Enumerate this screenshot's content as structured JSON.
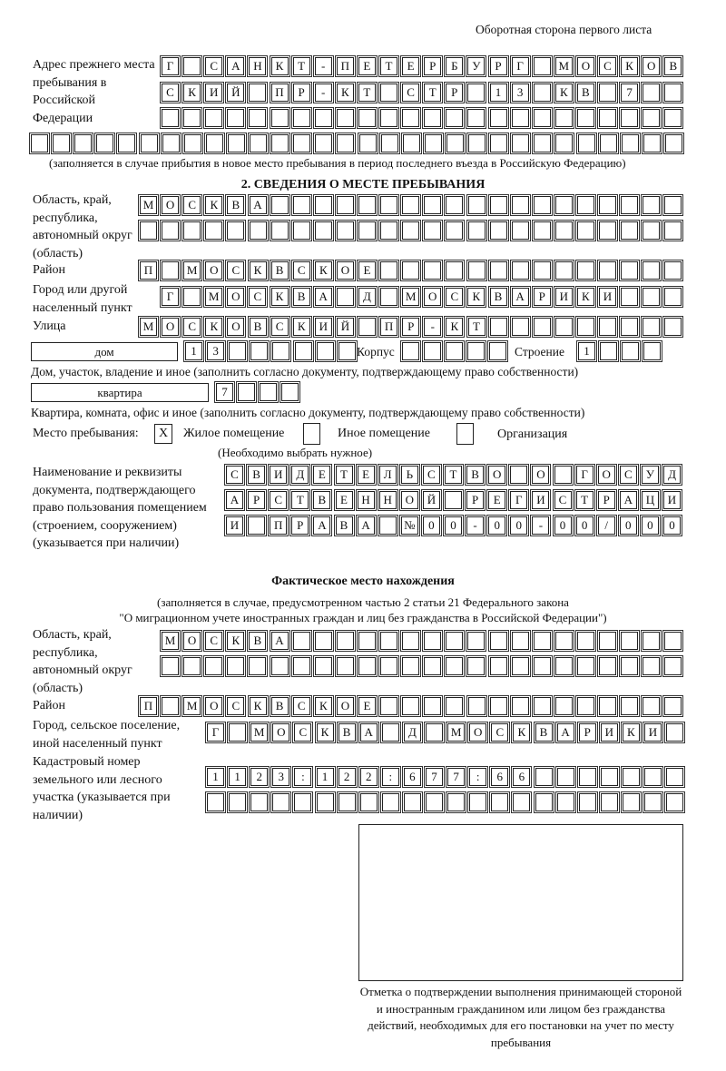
{
  "header": "Оборотная сторона первого листа",
  "prev_address": {
    "label": "Адрес прежнего места пребывания в Российской Федерации",
    "rows": [
      [
        "Г",
        "",
        "С",
        "А",
        "Н",
        "К",
        "Т",
        "-",
        "П",
        "Е",
        "Т",
        "Е",
        "Р",
        "Б",
        "У",
        "Р",
        "Г",
        "",
        "М",
        "О",
        "С",
        "К",
        "О",
        "В"
      ],
      [
        "С",
        "К",
        "И",
        "Й",
        "",
        "П",
        "Р",
        "-",
        "К",
        "Т",
        "",
        "С",
        "Т",
        "Р",
        "",
        "1",
        "3",
        "",
        "К",
        "В",
        "",
        "7",
        "",
        ""
      ],
      [
        "",
        "",
        "",
        "",
        "",
        "",
        "",
        "",
        "",
        "",
        "",
        "",
        "",
        "",
        "",
        "",
        "",
        "",
        "",
        "",
        "",
        "",
        "",
        ""
      ],
      [
        "",
        "",
        "",
        "",
        "",
        "",
        "",
        "",
        "",
        "",
        "",
        "",
        "",
        "",
        "",
        "",
        "",
        "",
        "",
        "",
        "",
        "",
        "",
        "",
        "",
        "",
        "",
        "",
        "",
        ""
      ]
    ],
    "note": "(заполняется в случае прибытия в новое место пребывания в период последнего въезда в Российскую Федерацию)"
  },
  "section2": {
    "title": "2. СВЕДЕНИЯ О МЕСТЕ ПРЕБЫВАНИЯ",
    "region_label": "Область, край, республика, автономный округ (область)",
    "region_rows": [
      [
        "М",
        "О",
        "С",
        "К",
        "В",
        "А",
        "",
        "",
        "",
        "",
        "",
        "",
        "",
        "",
        "",
        "",
        "",
        "",
        "",
        "",
        "",
        "",
        "",
        "",
        ""
      ],
      [
        "",
        "",
        "",
        "",
        "",
        "",
        "",
        "",
        "",
        "",
        "",
        "",
        "",
        "",
        "",
        "",
        "",
        "",
        "",
        "",
        "",
        "",
        "",
        "",
        ""
      ]
    ],
    "district_label": "Район",
    "district_row": [
      "П",
      "",
      "М",
      "О",
      "С",
      "К",
      "В",
      "С",
      "К",
      "О",
      "Е",
      "",
      "",
      "",
      "",
      "",
      "",
      "",
      "",
      "",
      "",
      "",
      "",
      "",
      ""
    ],
    "city_label": "Город или другой населенный пункт",
    "city_row": [
      "Г",
      "",
      "М",
      "О",
      "С",
      "К",
      "В",
      "А",
      "",
      "Д",
      "",
      "М",
      "О",
      "С",
      "К",
      "В",
      "А",
      "Р",
      "И",
      "К",
      "И",
      "",
      "",
      ""
    ],
    "street_label": "Улица",
    "street_row": [
      "М",
      "О",
      "С",
      "К",
      "О",
      "В",
      "С",
      "К",
      "И",
      "Й",
      "",
      "П",
      "Р",
      "-",
      "К",
      "Т",
      "",
      "",
      "",
      "",
      "",
      "",
      "",
      "",
      ""
    ],
    "house_type": "дом",
    "house_cells": [
      "1",
      "3",
      "",
      "",
      "",
      "",
      "",
      ""
    ],
    "korpus_label": "Корпус",
    "korpus_cells": [
      "",
      "",
      "",
      "",
      ""
    ],
    "stroenie_label": "Строение",
    "stroenie_cells": [
      "1",
      "",
      "",
      ""
    ],
    "house_note": "Дом, участок, владение и иное (заполнить согласно документу, подтверждающему право собственности)",
    "flat_type": "квартира",
    "flat_cells": [
      "7",
      "",
      "",
      ""
    ],
    "flat_note": "Квартира, комната, офис и иное (заполнить согласно документу, подтверждающему право собственности)",
    "place_label": "Место пребывания:",
    "place_options": [
      {
        "label": "Жилое помещение",
        "mark": "X"
      },
      {
        "label": "Иное помещение",
        "mark": ""
      },
      {
        "label": "Организация",
        "mark": ""
      }
    ],
    "place_note": "(Необходимо выбрать нужное)",
    "doc_label": "Наименование и реквизиты документа, подтверждающего право пользования помещением (строением, сооружением) (указывается при наличии)",
    "doc_rows": [
      [
        "С",
        "В",
        "И",
        "Д",
        "Е",
        "Т",
        "Е",
        "Л",
        "Ь",
        "С",
        "Т",
        "В",
        "О",
        "",
        "О",
        "",
        "Г",
        "О",
        "С",
        "У",
        "Д"
      ],
      [
        "А",
        "Р",
        "С",
        "Т",
        "В",
        "Е",
        "Н",
        "Н",
        "О",
        "Й",
        "",
        "Р",
        "Е",
        "Г",
        "И",
        "С",
        "Т",
        "Р",
        "А",
        "Ц",
        "И"
      ],
      [
        "И",
        "",
        "П",
        "Р",
        "А",
        "В",
        "А",
        "",
        "№",
        "0",
        "0",
        "-",
        "0",
        "0",
        "-",
        "0",
        "0",
        "/",
        "0",
        "0",
        "0"
      ]
    ]
  },
  "actual": {
    "title": "Фактическое место нахождения",
    "note1": "(заполняется в случае, предусмотренном частью 2 статьи 21 Федерального закона",
    "note2": "\"О миграционном учете иностранных граждан и лиц без гражданства в Российской Федерации\")",
    "region_label": "Область, край, республика, автономный округ (область)",
    "region_rows": [
      [
        "М",
        "О",
        "С",
        "К",
        "В",
        "А",
        "",
        "",
        "",
        "",
        "",
        "",
        "",
        "",
        "",
        "",
        "",
        "",
        "",
        "",
        "",
        "",
        "",
        ""
      ],
      [
        "",
        "",
        "",
        "",
        "",
        "",
        "",
        "",
        "",
        "",
        "",
        "",
        "",
        "",
        "",
        "",
        "",
        "",
        "",
        "",
        "",
        "",
        "",
        ""
      ]
    ],
    "district_label": "Район",
    "district_row": [
      "П",
      "",
      "М",
      "О",
      "С",
      "К",
      "В",
      "С",
      "К",
      "О",
      "Е",
      "",
      "",
      "",
      "",
      "",
      "",
      "",
      "",
      "",
      "",
      "",
      "",
      "",
      ""
    ],
    "city_label": "Город, сельское поселение, иной населенный пункт",
    "city_row": [
      "Г",
      "",
      "М",
      "О",
      "С",
      "К",
      "В",
      "А",
      "",
      "Д",
      "",
      "М",
      "О",
      "С",
      "К",
      "В",
      "А",
      "Р",
      "И",
      "К",
      "И",
      ""
    ],
    "cadastral_label": "Кадастровый номер земельного или лесного участка (указывается при наличии)",
    "cadastral_rows": [
      [
        "1",
        "1",
        "2",
        "3",
        ":",
        "1",
        "2",
        "2",
        ":",
        "6",
        "7",
        "7",
        ":",
        "6",
        "6",
        "",
        "",
        "",
        "",
        "",
        "",
        ""
      ],
      [
        "",
        "",
        "",
        "",
        "",
        "",
        "",
        "",
        "",
        "",
        "",
        "",
        "",
        "",
        "",
        "",
        "",
        "",
        "",
        "",
        "",
        ""
      ]
    ]
  },
  "stamp_caption": "Отметка о подтверждении выполнения принимающей стороной и иностранным гражданином или лицом без гражданства действий, необходимых для его постановки на учет по месту пребывания"
}
